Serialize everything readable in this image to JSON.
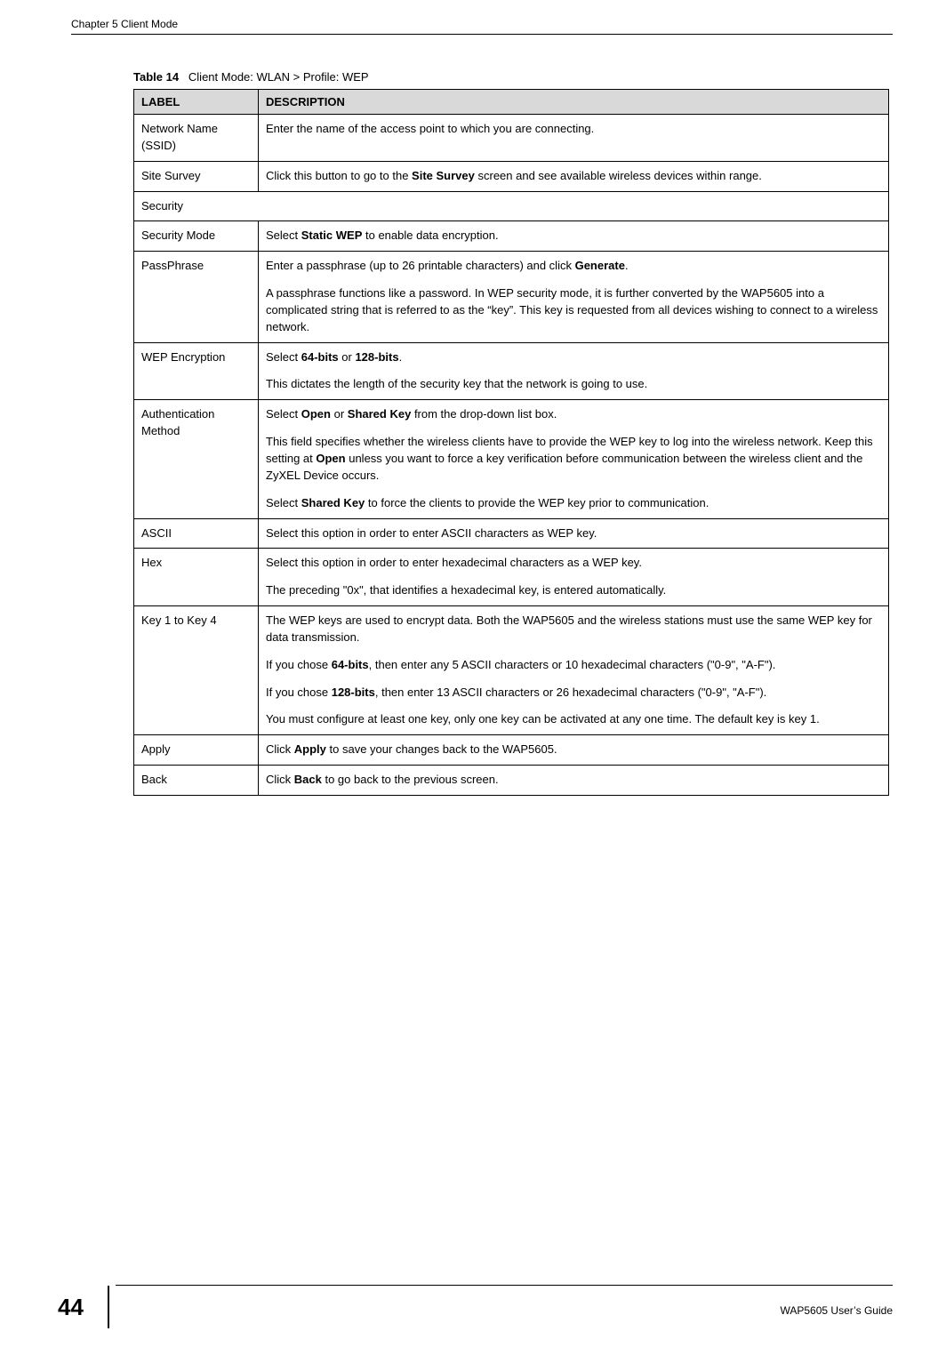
{
  "header": {
    "chapter": "Chapter 5 Client Mode"
  },
  "table": {
    "caption_prefix": "Table 14",
    "caption_text": "Client Mode: WLAN > Profile: WEP",
    "columns": {
      "label": "LABEL",
      "description": "DESCRIPTION"
    },
    "rows": [
      {
        "label": "Network Name (SSID)",
        "desc_plain": "Enter the name of the access point to which you are connecting."
      },
      {
        "label": "Site Survey",
        "desc_html": "Click this button to go to the <b>Site Survey</b> screen and see available wireless devices within range."
      },
      {
        "label_colspan": "Security"
      },
      {
        "label": "Security Mode",
        "desc_html": "Select <b>Static WEP</b> to enable data encryption."
      },
      {
        "label": "PassPhrase",
        "desc_html": "<p>Enter a passphrase (up to 26 printable characters) and click <b>Generate</b>.</p><p>A passphrase functions like a password. In WEP security mode, it is further converted by the WAP5605 into a complicated string that is referred to as the “key”. This key is requested from all devices wishing to connect to a wireless network.</p>"
      },
      {
        "label": "WEP Encryption",
        "desc_html": "<p>Select <b>64-bits</b> or <b>128-bits</b>.</p><p>This dictates the length of the security key that the network is going to use.</p>"
      },
      {
        "label": "Authentication Method",
        "desc_html": "<p>Select <b>Open</b> or <b>Shared Key</b> from the drop-down list box.</p><p>This field specifies whether the wireless clients have to provide the WEP key to log into the wireless network. Keep this setting at <b>Open</b> unless you want to force a key verification before communication between the wireless client and the ZyXEL Device occurs.</p><p>Select <b>Shared Key</b> to force the clients to provide the WEP key prior to communication.</p>"
      },
      {
        "label": "ASCII",
        "desc_plain": "Select this option in order to enter ASCII characters as WEP key."
      },
      {
        "label": "Hex",
        "desc_html": "<p>Select this option in order to enter hexadecimal characters as a WEP key.</p><p>The preceding \"0x\", that identifies a hexadecimal key, is entered automatically.</p>"
      },
      {
        "label": "Key 1 to Key 4",
        "desc_html": "<p>The WEP keys are used to encrypt data. Both the WAP5605 and the wireless stations must use the same WEP key for data transmission.</p><p>If you chose <b>64-bits</b>, then enter any 5 ASCII characters or 10 hexadecimal characters (\"0-9\", \"A-F\").</p><p>If you chose <b>128-bits</b>, then enter 13 ASCII characters or 26 hexadecimal characters (\"0-9\", \"A-F\").</p><p>You must configure at least one key, only one key can be activated at any one time. The default key is key 1.</p>"
      },
      {
        "label": "Apply",
        "desc_html": "Click <b>Apply</b> to save your changes back to the WAP5605."
      },
      {
        "label": "Back",
        "desc_html": "Click <b>Back</b> to go back to the previous screen."
      }
    ]
  },
  "footer": {
    "page_number": "44",
    "guide": "WAP5605 User’s Guide"
  }
}
